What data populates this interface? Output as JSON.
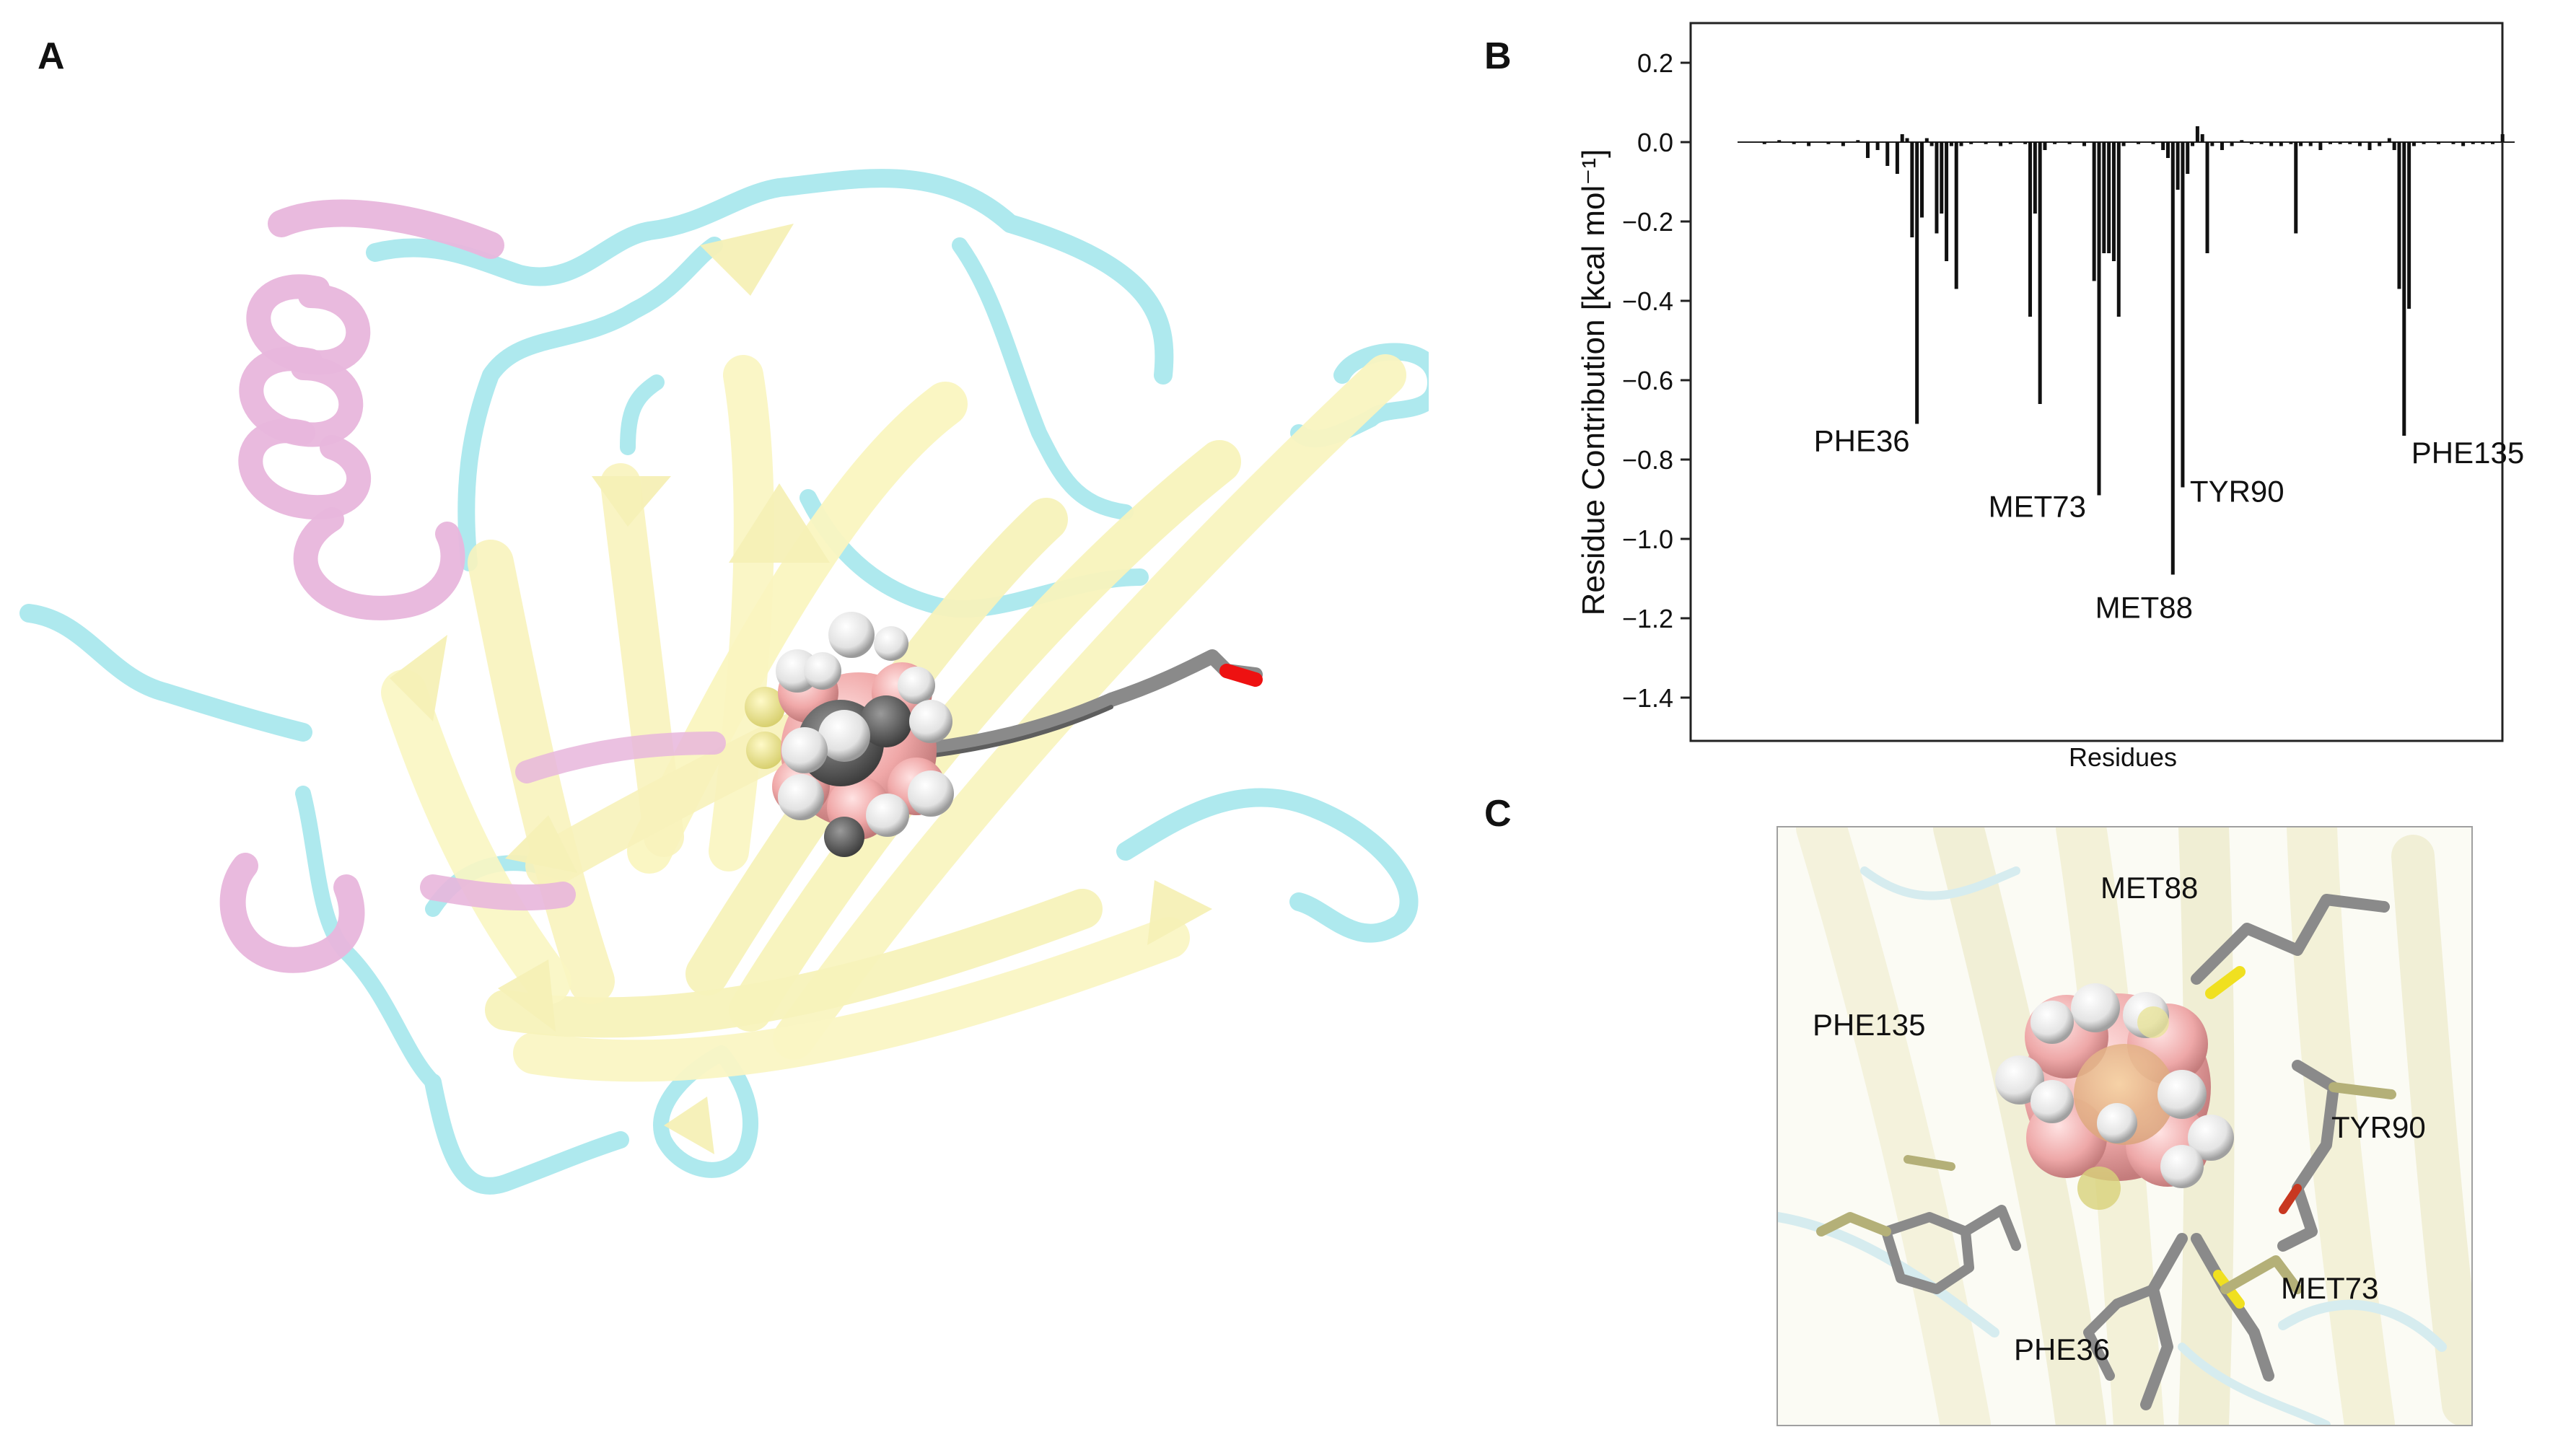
{
  "panel_letters": {
    "a": "A",
    "b": "B",
    "c": "C"
  },
  "chart_data": {
    "type": "bar",
    "xlabel": "Residues",
    "ylabel": "Residue Contribution [kcal mol⁻¹]",
    "ylim": [
      -1.5,
      0.3
    ],
    "yticks": [
      0.2,
      0.0,
      -0.2,
      -0.4,
      -0.6,
      -0.8,
      -1.0,
      -1.2,
      -1.4
    ],
    "ytick_labels": [
      "0.2",
      "0.0",
      "−0.2",
      "−0.4",
      "−0.6",
      "−0.8",
      "−1.0",
      "−1.2",
      "−1.4"
    ],
    "x_range": [
      1,
      156
    ],
    "grid": false,
    "bars": [
      {
        "x": 5,
        "v": -0.005
      },
      {
        "x": 8,
        "v": 0.005
      },
      {
        "x": 11,
        "v": -0.005
      },
      {
        "x": 14,
        "v": -0.01
      },
      {
        "x": 18,
        "v": -0.005
      },
      {
        "x": 21,
        "v": -0.01
      },
      {
        "x": 24,
        "v": 0.005
      },
      {
        "x": 26,
        "v": -0.04
      },
      {
        "x": 28,
        "v": -0.02
      },
      {
        "x": 30,
        "v": -0.06
      },
      {
        "x": 32,
        "v": -0.08
      },
      {
        "x": 33,
        "v": 0.02
      },
      {
        "x": 34,
        "v": 0.01
      },
      {
        "x": 35,
        "v": -0.24
      },
      {
        "x": 36,
        "v": -0.71
      },
      {
        "x": 37,
        "v": -0.19
      },
      {
        "x": 38,
        "v": 0.01
      },
      {
        "x": 39,
        "v": -0.01
      },
      {
        "x": 40,
        "v": -0.23
      },
      {
        "x": 41,
        "v": -0.18
      },
      {
        "x": 42,
        "v": -0.3
      },
      {
        "x": 43,
        "v": -0.01
      },
      {
        "x": 44,
        "v": -0.37
      },
      {
        "x": 45,
        "v": -0.01
      },
      {
        "x": 47,
        "v": -0.005
      },
      {
        "x": 50,
        "v": -0.005
      },
      {
        "x": 53,
        "v": -0.01
      },
      {
        "x": 55,
        "v": -0.005
      },
      {
        "x": 58,
        "v": -0.005
      },
      {
        "x": 59,
        "v": -0.44
      },
      {
        "x": 60,
        "v": -0.18
      },
      {
        "x": 61,
        "v": -0.66
      },
      {
        "x": 62,
        "v": -0.02
      },
      {
        "x": 64,
        "v": -0.005
      },
      {
        "x": 67,
        "v": -0.005
      },
      {
        "x": 70,
        "v": -0.01
      },
      {
        "x": 72,
        "v": -0.35
      },
      {
        "x": 73,
        "v": -0.89
      },
      {
        "x": 74,
        "v": -0.28
      },
      {
        "x": 75,
        "v": -0.28
      },
      {
        "x": 76,
        "v": -0.3
      },
      {
        "x": 77,
        "v": -0.44
      },
      {
        "x": 78,
        "v": -0.01
      },
      {
        "x": 81,
        "v": -0.005
      },
      {
        "x": 84,
        "v": -0.005
      },
      {
        "x": 86,
        "v": -0.02
      },
      {
        "x": 87,
        "v": -0.04
      },
      {
        "x": 88,
        "v": -1.09
      },
      {
        "x": 89,
        "v": -0.12
      },
      {
        "x": 90,
        "v": -0.87
      },
      {
        "x": 91,
        "v": -0.08
      },
      {
        "x": 92,
        "v": -0.01
      },
      {
        "x": 93,
        "v": 0.04
      },
      {
        "x": 94,
        "v": 0.02
      },
      {
        "x": 95,
        "v": -0.28
      },
      {
        "x": 96,
        "v": -0.01
      },
      {
        "x": 98,
        "v": -0.02
      },
      {
        "x": 100,
        "v": -0.01
      },
      {
        "x": 102,
        "v": 0.005
      },
      {
        "x": 104,
        "v": -0.005
      },
      {
        "x": 106,
        "v": -0.005
      },
      {
        "x": 108,
        "v": -0.01
      },
      {
        "x": 110,
        "v": -0.01
      },
      {
        "x": 112,
        "v": -0.005
      },
      {
        "x": 113,
        "v": -0.23
      },
      {
        "x": 114,
        "v": -0.01
      },
      {
        "x": 116,
        "v": -0.01
      },
      {
        "x": 118,
        "v": -0.02
      },
      {
        "x": 120,
        "v": -0.005
      },
      {
        "x": 122,
        "v": -0.005
      },
      {
        "x": 124,
        "v": -0.005
      },
      {
        "x": 126,
        "v": -0.01
      },
      {
        "x": 128,
        "v": -0.02
      },
      {
        "x": 130,
        "v": -0.01
      },
      {
        "x": 132,
        "v": 0.01
      },
      {
        "x": 133,
        "v": -0.02
      },
      {
        "x": 134,
        "v": -0.37
      },
      {
        "x": 135,
        "v": -0.74
      },
      {
        "x": 136,
        "v": -0.42
      },
      {
        "x": 137,
        "v": -0.01
      },
      {
        "x": 139,
        "v": -0.005
      },
      {
        "x": 142,
        "v": -0.005
      },
      {
        "x": 145,
        "v": -0.005
      },
      {
        "x": 147,
        "v": -0.01
      },
      {
        "x": 149,
        "v": -0.005
      },
      {
        "x": 151,
        "v": -0.005
      },
      {
        "x": 153,
        "v": -0.005
      },
      {
        "x": 155,
        "v": 0.02
      }
    ],
    "annotations": [
      {
        "text": "PHE36",
        "x": 36,
        "v": -0.71
      },
      {
        "text": "MET73",
        "x": 73,
        "v": -0.89
      },
      {
        "text": "MET88",
        "x": 88,
        "v": -1.09
      },
      {
        "text": "TYR90",
        "x": 90,
        "v": -0.87
      },
      {
        "text": "PHE135",
        "x": 135,
        "v": -0.74
      }
    ]
  },
  "panel_c": {
    "labels": {
      "met88": "MET88",
      "phe135": "PHE135",
      "tyr90": "TYR90",
      "met73": "MET73",
      "phe36": "PHE36"
    }
  }
}
